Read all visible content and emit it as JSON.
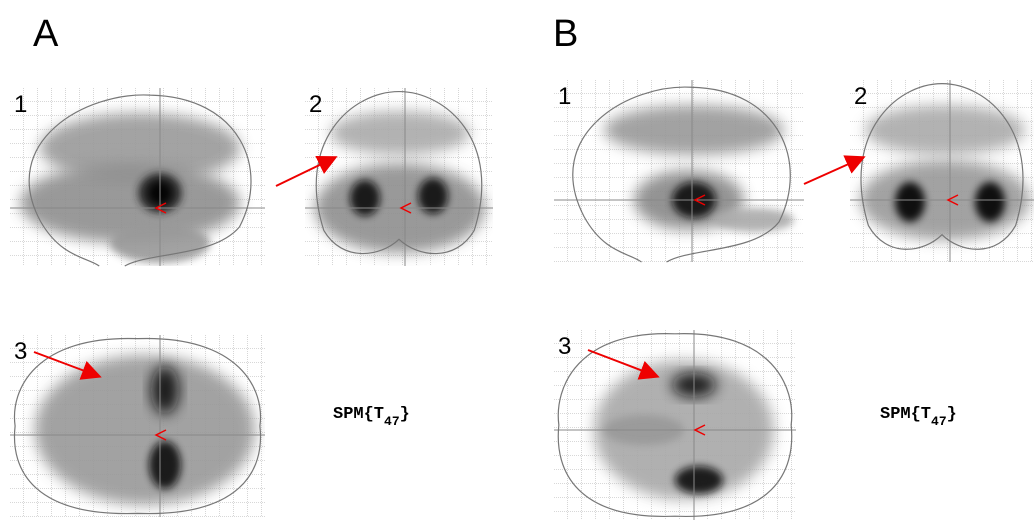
{
  "panels": [
    {
      "label": "A",
      "views": [
        "1",
        "2",
        "3"
      ],
      "statistic": {
        "prefix": "SPM{T",
        "subscript": "47",
        "suffix": "}"
      }
    },
    {
      "label": "B",
      "views": [
        "1",
        "2",
        "3"
      ],
      "statistic": {
        "prefix": "SPM{T",
        "subscript": "47",
        "suffix": "}"
      }
    }
  ]
}
